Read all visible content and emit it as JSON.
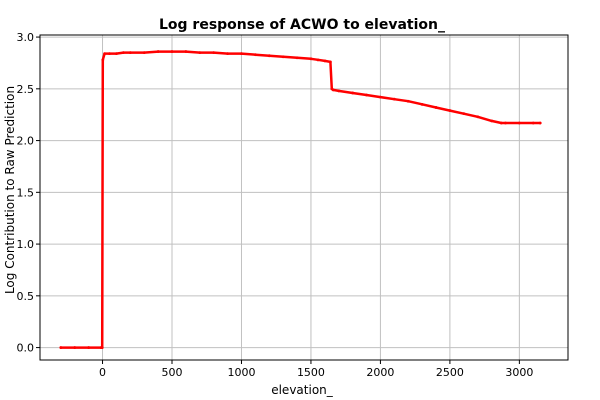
{
  "chart_data": {
    "type": "line",
    "title": "Log response of ACWO to elevation_",
    "xlabel": "elevation_",
    "ylabel": "Log Contribution to Raw Prediction",
    "xlim": [
      -450,
      3350
    ],
    "ylim": [
      -0.12,
      3.02
    ],
    "x_ticks": [
      0,
      500,
      1000,
      1500,
      2000,
      2500,
      3000
    ],
    "y_ticks": [
      0.0,
      0.5,
      1.0,
      1.5,
      2.0,
      2.5,
      3.0
    ],
    "x_tick_labels": [
      "0",
      "500",
      "1000",
      "1500",
      "2000",
      "2500",
      "3000"
    ],
    "y_tick_labels": [
      "0.0",
      "0.5",
      "1.0",
      "1.5",
      "2.0",
      "2.5",
      "3.0"
    ],
    "grid": true,
    "legend": "none",
    "series": [
      {
        "color": "#ff0000",
        "x": [
          -300,
          -200,
          -100,
          -10,
          -2,
          2,
          15,
          50,
          100,
          150,
          200,
          300,
          400,
          500,
          600,
          700,
          800,
          900,
          1000,
          1100,
          1200,
          1300,
          1400,
          1500,
          1550,
          1600,
          1640,
          1650,
          1660,
          1700,
          1800,
          1900,
          2000,
          2100,
          2200,
          2300,
          2400,
          2500,
          2600,
          2700,
          2800,
          2870,
          2900,
          3000,
          3100,
          3150
        ],
        "y": [
          0.0,
          0.0,
          0.0,
          0.0,
          0.0,
          2.78,
          2.84,
          2.84,
          2.84,
          2.85,
          2.85,
          2.85,
          2.86,
          2.86,
          2.86,
          2.85,
          2.85,
          2.84,
          2.84,
          2.83,
          2.82,
          2.81,
          2.8,
          2.79,
          2.78,
          2.77,
          2.76,
          2.5,
          2.49,
          2.48,
          2.46,
          2.44,
          2.42,
          2.4,
          2.38,
          2.35,
          2.32,
          2.29,
          2.26,
          2.23,
          2.19,
          2.17,
          2.17,
          2.17,
          2.17,
          2.17
        ]
      }
    ]
  }
}
